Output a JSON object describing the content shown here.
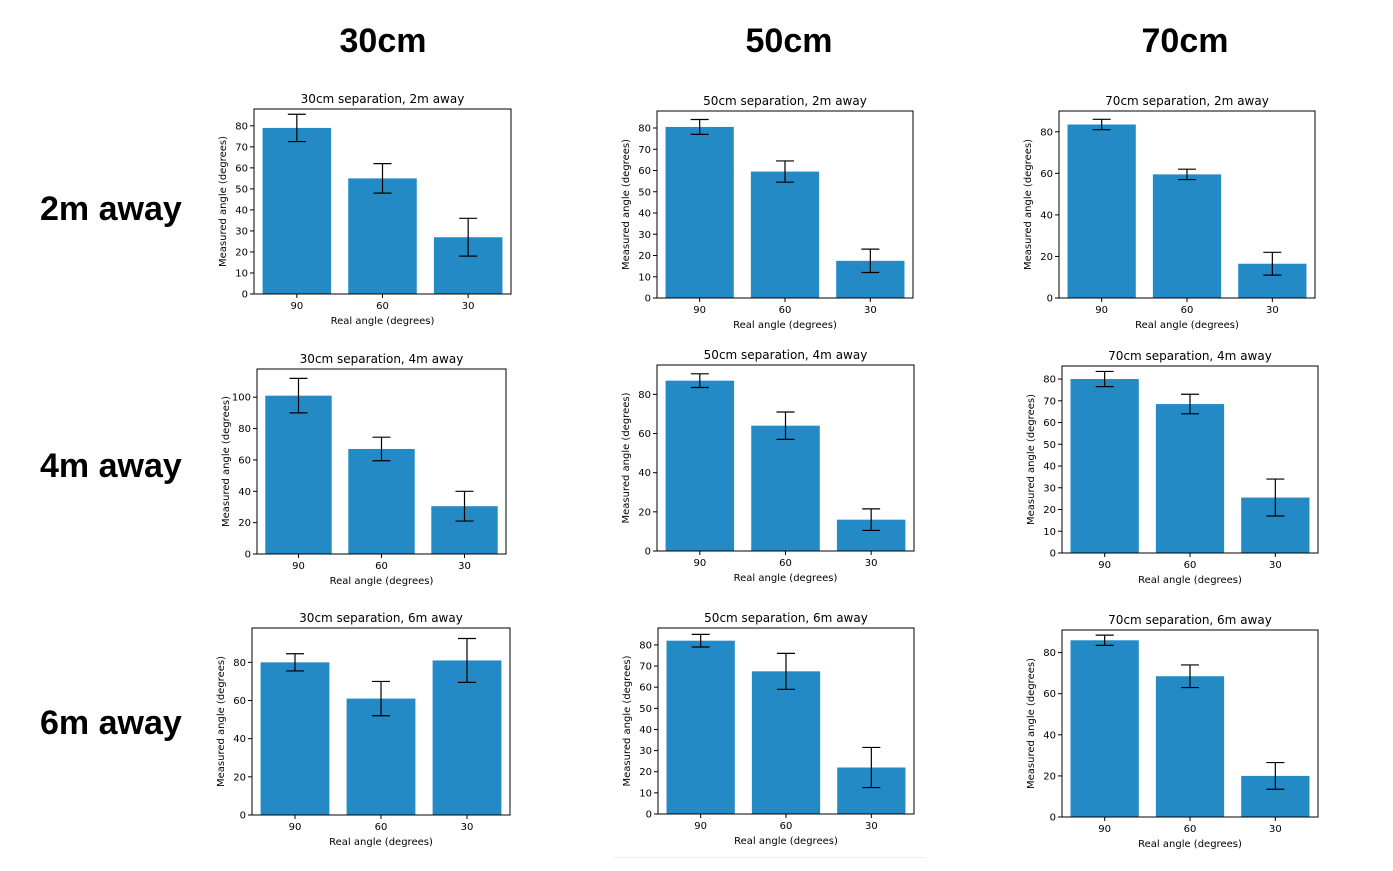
{
  "column_headers": [
    "30cm",
    "50cm",
    "70cm"
  ],
  "row_headers": [
    "2m away",
    "4m away",
    "6m away"
  ],
  "bar_color": "#238ac6",
  "chart_data": [
    {
      "type": "bar",
      "title": "30cm separation, 2m away",
      "xlabel": "Real angle (degrees)",
      "ylabel": "Measured angle (degrees)",
      "categories": [
        "90",
        "60",
        "30"
      ],
      "values": [
        79,
        55,
        27
      ],
      "errors": [
        6.5,
        7,
        9
      ],
      "ylim": [
        0,
        88
      ],
      "yticks": [
        0,
        10,
        20,
        30,
        40,
        50,
        60,
        70,
        80
      ]
    },
    {
      "type": "bar",
      "title": "50cm separation, 2m away",
      "xlabel": "Real angle (degrees)",
      "ylabel": "Measured angle (degrees)",
      "categories": [
        "90",
        "60",
        "30"
      ],
      "values": [
        80.5,
        59.5,
        17.5
      ],
      "errors": [
        3.5,
        5,
        5.5
      ],
      "ylim": [
        0,
        88
      ],
      "yticks": [
        0,
        10,
        20,
        30,
        40,
        50,
        60,
        70,
        80
      ]
    },
    {
      "type": "bar",
      "title": "70cm separation, 2m away",
      "xlabel": "Real angle (degrees)",
      "ylabel": "Measured angle (degrees)",
      "categories": [
        "90",
        "60",
        "30"
      ],
      "values": [
        83.5,
        59.5,
        16.5
      ],
      "errors": [
        2.5,
        2.5,
        5.5
      ],
      "ylim": [
        0,
        90
      ],
      "yticks": [
        0,
        20,
        40,
        60,
        80
      ]
    },
    {
      "type": "bar",
      "title": "30cm separation, 4m away",
      "xlabel": "Real angle (degrees)",
      "ylabel": "Measured angle (degrees)",
      "categories": [
        "90",
        "60",
        "30"
      ],
      "values": [
        101,
        67,
        30.5
      ],
      "errors": [
        11,
        7.5,
        9.5
      ],
      "ylim": [
        0,
        118
      ],
      "yticks": [
        0,
        20,
        40,
        60,
        80,
        100
      ]
    },
    {
      "type": "bar",
      "title": "50cm separation, 4m away",
      "xlabel": "Real angle (degrees)",
      "ylabel": "Measured angle (degrees)",
      "categories": [
        "90",
        "60",
        "30"
      ],
      "values": [
        87,
        64,
        16
      ],
      "errors": [
        3.5,
        7,
        5.5
      ],
      "ylim": [
        0,
        95
      ],
      "yticks": [
        0,
        20,
        40,
        60,
        80
      ]
    },
    {
      "type": "bar",
      "title": "70cm separation, 4m away",
      "xlabel": "Real angle (degrees)",
      "ylabel": "Measured angle (degrees)",
      "categories": [
        "90",
        "60",
        "30"
      ],
      "values": [
        80,
        68.5,
        25.5
      ],
      "errors": [
        3.5,
        4.5,
        8.5
      ],
      "ylim": [
        0,
        86
      ],
      "yticks": [
        0,
        10,
        20,
        30,
        40,
        50,
        60,
        70,
        80
      ]
    },
    {
      "type": "bar",
      "title": "30cm separation, 6m away",
      "xlabel": "Real angle (degrees)",
      "ylabel": "Measured angle (degrees)",
      "categories": [
        "90",
        "60",
        "30"
      ],
      "values": [
        80,
        61,
        81
      ],
      "errors": [
        4.5,
        9,
        11.5
      ],
      "ylim": [
        0,
        98
      ],
      "yticks": [
        0,
        20,
        40,
        60,
        80
      ]
    },
    {
      "type": "bar",
      "title": "50cm separation, 6m away",
      "xlabel": "Real angle (degrees)",
      "ylabel": "Measured angle (degrees)",
      "categories": [
        "90",
        "60",
        "30"
      ],
      "values": [
        82,
        67.5,
        22
      ],
      "errors": [
        3,
        8.5,
        9.5
      ],
      "ylim": [
        0,
        88
      ],
      "yticks": [
        0,
        10,
        20,
        30,
        40,
        50,
        60,
        70,
        80
      ]
    },
    {
      "type": "bar",
      "title": "70cm separation, 6m away",
      "xlabel": "Real angle (degrees)",
      "ylabel": "Measured angle (degrees)",
      "categories": [
        "90",
        "60",
        "30"
      ],
      "values": [
        86,
        68.5,
        20
      ],
      "errors": [
        2.5,
        5.5,
        6.5
      ],
      "ylim": [
        0,
        91
      ],
      "yticks": [
        0,
        20,
        40,
        60,
        80
      ]
    }
  ]
}
